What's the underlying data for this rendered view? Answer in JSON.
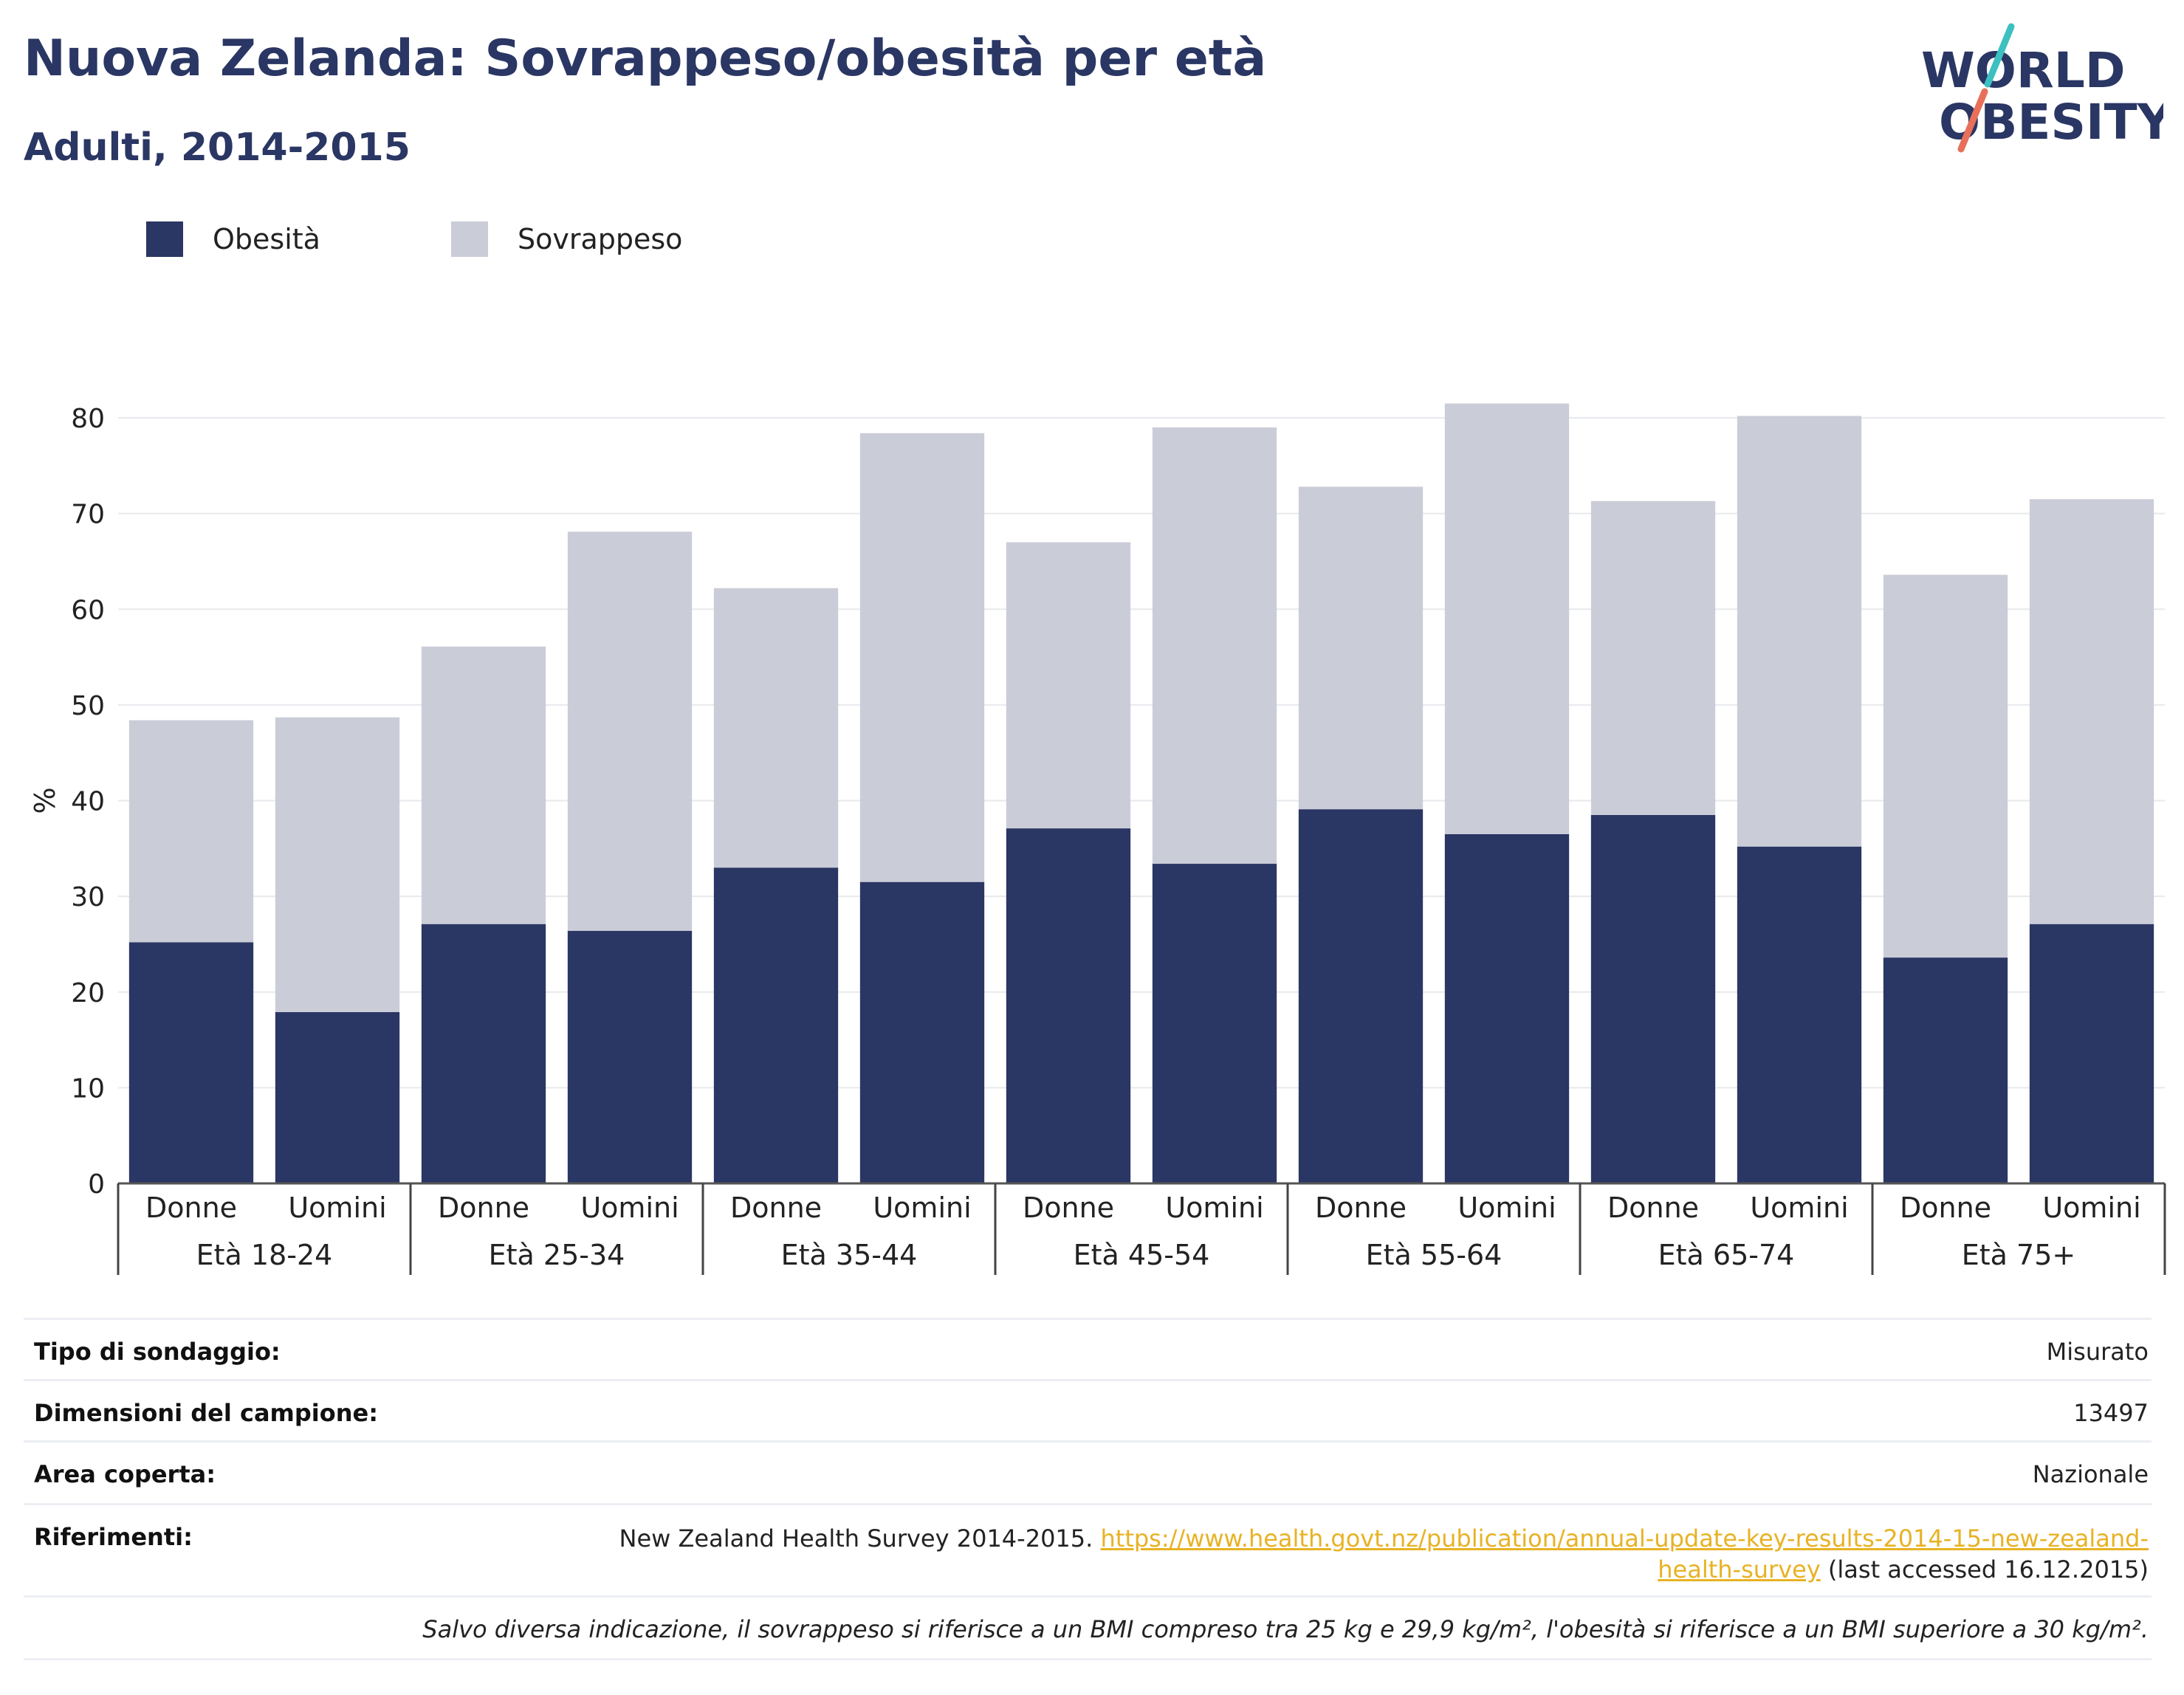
{
  "header": {
    "title": "Nuova Zelanda: Sovrappeso/obesità per età",
    "subtitle": "Adulti, 2014-2015"
  },
  "logo": {
    "line1": "WORLD",
    "line2": "OBESITY"
  },
  "colors": {
    "obesity": "#2a3663",
    "overweight": "#caccd8",
    "text_dark": "#2a3663",
    "link": "#e8b224",
    "logo_slash_top": "#3cc0c0",
    "logo_slash_bottom": "#e8705a"
  },
  "legend": [
    {
      "label": "Obesità",
      "color": "#2a3663"
    },
    {
      "label": "Sovrappeso",
      "color": "#caccd8"
    }
  ],
  "chart_data": {
    "type": "bar",
    "stacked": true,
    "ylabel": "%",
    "ylim": [
      0,
      80
    ],
    "yticks": [
      0,
      10,
      20,
      30,
      40,
      50,
      60,
      70,
      80
    ],
    "grid": true,
    "legend_position": "top-left",
    "groups": [
      "Età 18-24",
      "Età 25-34",
      "Età 35-44",
      "Età 45-54",
      "Età 55-64",
      "Età 65-74",
      "Età 75+"
    ],
    "categories": [
      "Donne",
      "Uomini",
      "Donne",
      "Uomini",
      "Donne",
      "Uomini",
      "Donne",
      "Uomini",
      "Donne",
      "Uomini",
      "Donne",
      "Uomini",
      "Donne",
      "Uomini"
    ],
    "series": [
      {
        "name": "Obesità",
        "values": [
          25.2,
          17.9,
          27.1,
          26.4,
          33.0,
          31.5,
          37.1,
          33.4,
          39.1,
          36.5,
          38.5,
          35.2,
          23.6,
          27.1
        ]
      },
      {
        "name": "Sovrappeso",
        "values": [
          23.2,
          30.8,
          29.0,
          41.7,
          29.2,
          46.9,
          29.9,
          45.6,
          33.7,
          45.0,
          32.8,
          45.0,
          40.0,
          44.4
        ]
      }
    ]
  },
  "info": {
    "survey_type_label": "Tipo di sondaggio:",
    "survey_type_value": "Misurato",
    "sample_size_label": "Dimensioni del campione:",
    "sample_size_value": "13497",
    "area_label": "Area coperta:",
    "area_value": "Nazionale",
    "references_label": "Riferimenti:",
    "references_text": "New Zealand Health Survey 2014-2015.",
    "references_link_line1": "https://www.health.govt.nz/publication/annual-update-key-results-2014-15-new-zealand-",
    "references_link_line2": "health-survey",
    "references_accessed": "(last accessed 16.12.2015)",
    "note": "Salvo diversa indicazione, il sovrappeso si riferisce a un BMI compreso tra 25 kg e 29,9 kg/m², l'obesità si riferisce a un BMI superiore a 30 kg/m²."
  }
}
